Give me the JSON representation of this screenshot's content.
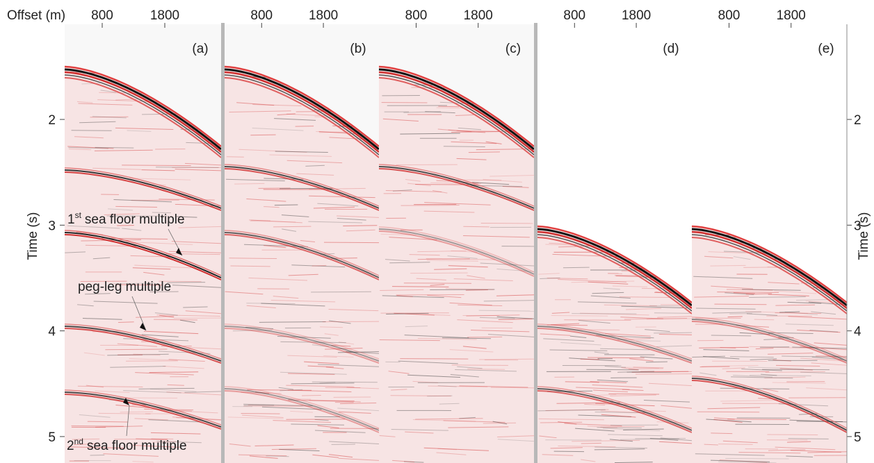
{
  "figure": {
    "x_axis": {
      "label": "Offset (m)",
      "xlim": [
        200,
        2700
      ],
      "ticks": [
        800,
        1800
      ]
    },
    "y_axis": {
      "label": "Time (s)",
      "ylim": [
        1.1,
        5.25
      ],
      "ticks": [
        2,
        3,
        4,
        5
      ]
    },
    "panels": [
      {
        "label": "(a)"
      },
      {
        "label": "(b)"
      },
      {
        "label": "(c)"
      },
      {
        "label": "(d)"
      },
      {
        "label": "(e)"
      }
    ],
    "annotations": [
      {
        "number": "1",
        "suffix": "st",
        "text": "sea floor multiple"
      },
      {
        "text": "peg-leg multiple"
      },
      {
        "number": "2",
        "suffix": "nd",
        "text": "sea floor multiple"
      }
    ]
  }
}
